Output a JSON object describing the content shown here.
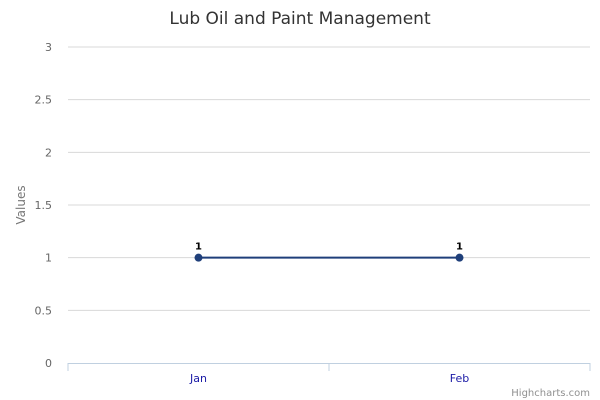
{
  "chart_data": {
    "type": "line",
    "title": "Lub Oil and Paint Management",
    "xlabel": "",
    "ylabel": "Values",
    "categories": [
      "Jan",
      "Feb"
    ],
    "series": [
      {
        "values": [
          1,
          1
        ],
        "color": "#1f3f7a"
      }
    ],
    "y_ticks": [
      "0",
      "0.5",
      "1",
      "1.5",
      "2",
      "2.5",
      "3"
    ],
    "ylim": [
      0,
      3
    ],
    "grid": true,
    "legend": "none",
    "data_labels": [
      "1",
      "1"
    ]
  },
  "credits": "Highcharts.com"
}
